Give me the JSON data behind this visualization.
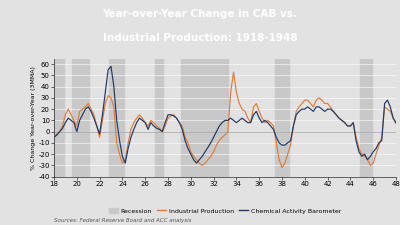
{
  "title_line1": "Year-over-Year Change in CAB vs.",
  "title_line2": "Industrial Production: 1918-1948",
  "title_bg_color": "#1f3864",
  "title_text_color": "#ffffff",
  "plot_bg_color": "#e2e2e2",
  "chart_bg_color": "#e2e2e2",
  "ylabel": "% Change Year-over-Year (3MMA)",
  "xlabel_ticks": [
    18,
    20,
    22,
    24,
    26,
    28,
    30,
    32,
    34,
    36,
    38,
    40,
    42,
    44,
    46,
    48
  ],
  "ylim": [
    -40,
    65
  ],
  "yticks": [
    -40,
    -30,
    -20,
    -10,
    0,
    10,
    20,
    30,
    40,
    50,
    60
  ],
  "recession_periods": [
    [
      18.0,
      18.9
    ],
    [
      19.6,
      21.1
    ],
    [
      22.8,
      24.1
    ],
    [
      26.9,
      27.6
    ],
    [
      29.1,
      33.3
    ],
    [
      37.4,
      38.6
    ],
    [
      44.8,
      45.9
    ]
  ],
  "source_text": "Sources: Federal Reserve Board and ACC analysis",
  "ip_color": "#e07b39",
  "cab_color": "#1f3864",
  "recession_color": "#c8c8c8",
  "ip_data_x": [
    18.0,
    18.25,
    18.5,
    18.75,
    19.0,
    19.25,
    19.5,
    19.75,
    20.0,
    20.25,
    20.5,
    20.75,
    21.0,
    21.25,
    21.5,
    21.75,
    22.0,
    22.25,
    22.5,
    22.75,
    23.0,
    23.25,
    23.5,
    23.75,
    24.0,
    24.25,
    24.5,
    24.75,
    25.0,
    25.25,
    25.5,
    25.75,
    26.0,
    26.25,
    26.5,
    26.75,
    27.0,
    27.25,
    27.5,
    27.75,
    28.0,
    28.25,
    28.5,
    28.75,
    29.0,
    29.25,
    29.5,
    29.75,
    30.0,
    30.25,
    30.5,
    30.75,
    31.0,
    31.25,
    31.5,
    31.75,
    32.0,
    32.25,
    32.5,
    32.75,
    33.0,
    33.25,
    33.5,
    33.75,
    34.0,
    34.25,
    34.5,
    34.75,
    35.0,
    35.25,
    35.5,
    35.75,
    36.0,
    36.25,
    36.5,
    36.75,
    37.0,
    37.25,
    37.5,
    37.75,
    38.0,
    38.25,
    38.5,
    38.75,
    39.0,
    39.25,
    39.5,
    39.75,
    40.0,
    40.25,
    40.5,
    40.75,
    41.0,
    41.25,
    41.5,
    41.75,
    42.0,
    42.25,
    42.5,
    42.75,
    43.0,
    43.25,
    43.5,
    43.75,
    44.0,
    44.25,
    44.5,
    44.75,
    45.0,
    45.25,
    45.5,
    45.75,
    46.0,
    46.25,
    46.5,
    46.75,
    47.0,
    47.25,
    47.5,
    47.75,
    48.0
  ],
  "ip_data_y": [
    -5,
    -2,
    0,
    5,
    15,
    20,
    15,
    10,
    5,
    18,
    20,
    22,
    25,
    20,
    15,
    5,
    -5,
    10,
    25,
    32,
    30,
    22,
    -10,
    -20,
    -28,
    -25,
    -10,
    2,
    8,
    12,
    15,
    12,
    8,
    5,
    10,
    8,
    5,
    3,
    0,
    5,
    12,
    14,
    15,
    12,
    8,
    5,
    -5,
    -10,
    -18,
    -22,
    -25,
    -28,
    -30,
    -28,
    -25,
    -22,
    -18,
    -12,
    -8,
    -5,
    -3,
    0,
    35,
    53,
    35,
    25,
    20,
    18,
    12,
    8,
    22,
    25,
    18,
    12,
    8,
    10,
    8,
    5,
    -10,
    -25,
    -32,
    -28,
    -20,
    -12,
    5,
    18,
    22,
    25,
    28,
    28,
    25,
    22,
    28,
    30,
    28,
    25,
    25,
    22,
    18,
    15,
    12,
    10,
    8,
    5,
    5,
    8,
    -5,
    -15,
    -20,
    -22,
    -25,
    -30,
    -28,
    -20,
    -12,
    -5,
    22,
    20,
    18,
    12,
    7
  ],
  "cab_data_x": [
    18.0,
    18.25,
    18.5,
    18.75,
    19.0,
    19.25,
    19.5,
    19.75,
    20.0,
    20.25,
    20.5,
    20.75,
    21.0,
    21.25,
    21.5,
    21.75,
    22.0,
    22.25,
    22.5,
    22.75,
    23.0,
    23.25,
    23.5,
    23.75,
    24.0,
    24.25,
    24.5,
    24.75,
    25.0,
    25.25,
    25.5,
    25.75,
    26.0,
    26.25,
    26.5,
    26.75,
    27.0,
    27.25,
    27.5,
    27.75,
    28.0,
    28.25,
    28.5,
    28.75,
    29.0,
    29.25,
    29.5,
    29.75,
    30.0,
    30.25,
    30.5,
    30.75,
    31.0,
    31.25,
    31.5,
    31.75,
    32.0,
    32.25,
    32.5,
    32.75,
    33.0,
    33.25,
    33.5,
    33.75,
    34.0,
    34.25,
    34.5,
    34.75,
    35.0,
    35.25,
    35.5,
    35.75,
    36.0,
    36.25,
    36.5,
    36.75,
    37.0,
    37.25,
    37.5,
    37.75,
    38.0,
    38.25,
    38.5,
    38.75,
    39.0,
    39.25,
    39.5,
    39.75,
    40.0,
    40.25,
    40.5,
    40.75,
    41.0,
    41.25,
    41.5,
    41.75,
    42.0,
    42.25,
    42.5,
    42.75,
    43.0,
    43.25,
    43.5,
    43.75,
    44.0,
    44.25,
    44.5,
    44.75,
    45.0,
    45.25,
    45.5,
    45.75,
    46.0,
    46.25,
    46.5,
    46.75,
    47.0,
    47.25,
    47.5,
    47.75,
    48.0
  ],
  "cab_data_y": [
    -5,
    -3,
    0,
    3,
    8,
    12,
    10,
    8,
    0,
    10,
    15,
    20,
    22,
    18,
    12,
    5,
    -2,
    15,
    35,
    55,
    58,
    40,
    10,
    -8,
    -22,
    -28,
    -15,
    -5,
    2,
    8,
    12,
    10,
    8,
    2,
    8,
    5,
    3,
    2,
    0,
    8,
    15,
    15,
    14,
    12,
    8,
    2,
    -8,
    -15,
    -20,
    -25,
    -28,
    -25,
    -22,
    -18,
    -14,
    -10,
    -5,
    0,
    5,
    8,
    10,
    10,
    12,
    10,
    8,
    10,
    12,
    10,
    8,
    8,
    15,
    18,
    12,
    8,
    10,
    8,
    5,
    2,
    -5,
    -10,
    -12,
    -12,
    -10,
    -8,
    5,
    15,
    18,
    20,
    20,
    22,
    20,
    18,
    22,
    22,
    20,
    18,
    20,
    20,
    18,
    15,
    12,
    10,
    8,
    5,
    5,
    8,
    -8,
    -18,
    -22,
    -20,
    -25,
    -22,
    -18,
    -15,
    -10,
    -8,
    25,
    28,
    22,
    12,
    8
  ]
}
